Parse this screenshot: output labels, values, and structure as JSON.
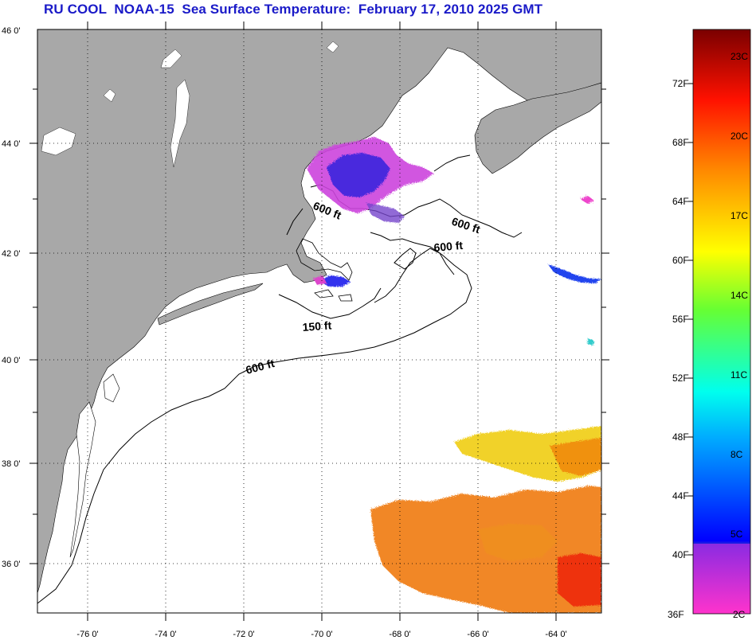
{
  "title": "RU COOL  NOAA-15  Sea Surface Temperature:  February 17, 2010 2025 GMT",
  "axes": {
    "lat_ticks": [
      "46 0'",
      "44 0'",
      "42 0'",
      "40 0'",
      "38 0'",
      "36 0'"
    ],
    "lon_ticks": [
      "-76 0'",
      "-74 0'",
      "-72 0'",
      "-70 0'",
      "-68 0'",
      "-66 0'",
      "-64 0'"
    ]
  },
  "contours": [
    "600 ft",
    "600 ft",
    "600 ft",
    "150 ft",
    "600 ft"
  ],
  "colorbar": {
    "fahrenheit": [
      "72F",
      "68F",
      "64F",
      "60F",
      "56F",
      "52F",
      "48F",
      "44F",
      "40F",
      "36F"
    ],
    "celsius": [
      "23C",
      "20C",
      "17C",
      "14C",
      "11C",
      "8C",
      "5C",
      "2C"
    ]
  },
  "colors": {
    "title": "#1a1ac8",
    "land": "#a8a8a8",
    "water": "#ffffff"
  }
}
